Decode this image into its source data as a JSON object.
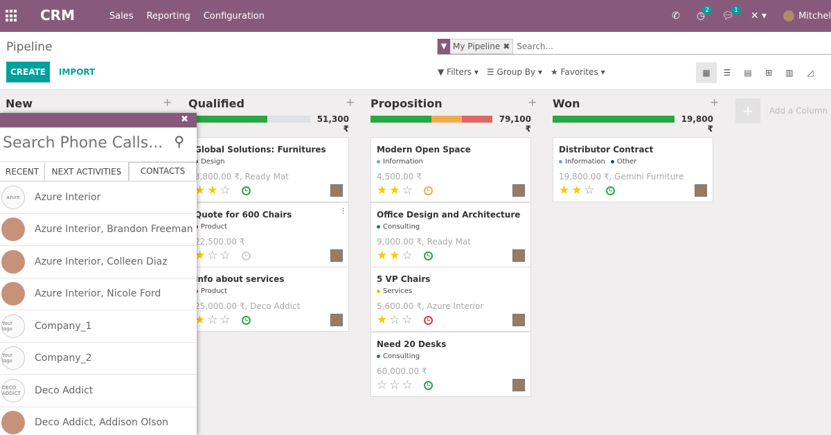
{
  "topbar": {
    "brand": "CRM",
    "menu": [
      "Sales",
      "Reporting",
      "Configuration"
    ],
    "activity_badge": "2",
    "messages_badge": "1",
    "user": "Mitchel"
  },
  "control_panel": {
    "breadcrumb": "Pipeline",
    "create_label": "CREATE",
    "import_label": "IMPORT",
    "facet_value": "My Pipeline",
    "search_placeholder": "Search...",
    "filters_label": "Filters",
    "groupby_label": "Group By",
    "favorites_label": "Favorites"
  },
  "colors": {
    "brand": "#875a7b",
    "accent": "#00a09d",
    "progress_green": "#28a745",
    "progress_orange": "#f0ad4e",
    "progress_red": "#dc6965",
    "progress_grey": "#dee2e6"
  },
  "columns": [
    {
      "title": "New",
      "total": "",
      "cards": []
    },
    {
      "title": "Qualified",
      "total": "51,300 ₹",
      "progress": {
        "green": 0.52,
        "grey": 0.28
      },
      "cards": [
        {
          "title": "Global Solutions: Furnitures",
          "tag": "Design",
          "tag_color": "#444444",
          "amount": "3,800.00 ₹, Ready Mat",
          "stars": 2,
          "activity": "green"
        },
        {
          "title": "Quote for 600 Chairs",
          "tag": "Product",
          "tag_color": "#dc3545",
          "amount": "22,500.00 ₹",
          "stars": 1,
          "activity": "grey"
        },
        {
          "title": "Info about services",
          "tag": "Product",
          "tag_color": "#dc3545",
          "amount": "25,000.00 ₹, Deco Addict",
          "stars": 1,
          "activity": "green"
        }
      ]
    },
    {
      "title": "Proposition",
      "total": "79,100 ₹",
      "progress": {
        "green": 0.4,
        "orange": 0.2,
        "red": 0.2
      },
      "cards": [
        {
          "title": "Modern Open Space",
          "tag": "Information",
          "tag_color": "#5dade2",
          "amount": "4,500.00 ₹",
          "stars": 2,
          "activity": "orange"
        },
        {
          "title": "Office Design and Architecture",
          "tag": "Consulting",
          "tag_color": "#1f6f8b",
          "amount": "9,000.00 ₹, Ready Mat",
          "stars": 2,
          "activity": "green"
        },
        {
          "title": "5 VP Chairs",
          "tag": "Services",
          "tag_color": "#f3c000",
          "amount": "5,600.00 ₹, Azure Interior",
          "stars": 1,
          "activity": "red"
        },
        {
          "title": "Need 20 Desks",
          "tag": "Consulting",
          "tag_color": "#1f6f8b",
          "amount": "60,000.00 ₹",
          "stars": 0,
          "activity": "green"
        }
      ]
    },
    {
      "title": "Won",
      "total": "19,800 ₹",
      "progress": {
        "green": 0.8
      },
      "cards": [
        {
          "title": "Distributor Contract",
          "tag": "Information",
          "tag_color": "#5dade2",
          "tag2": "Other",
          "tag2_color": "#1f4e79",
          "amount": "19,800.00 ₹, Gemini Furniture",
          "stars": 2,
          "activity": "green"
        }
      ]
    }
  ],
  "add_column_label": "Add a Column",
  "phone_panel": {
    "search_placeholder": "Search Phone Calls...",
    "tabs": [
      "RECENT",
      "NEXT ACTIVITIES",
      "CONTACTS"
    ],
    "contacts": [
      {
        "name": "Azure Interior",
        "avatar": "azure"
      },
      {
        "name": "Azure Interior, Brandon Freeman",
        "avatar": "photo"
      },
      {
        "name": "Azure Interior, Colleen Diaz",
        "avatar": "photo"
      },
      {
        "name": "Azure Interior, Nicole Ford",
        "avatar": "photo"
      },
      {
        "name": "Company_1",
        "avatar": "Your logo"
      },
      {
        "name": "Company_2",
        "avatar": "Your logo"
      },
      {
        "name": "Deco Addict",
        "avatar": "DECO ADDICT"
      },
      {
        "name": "Deco Addict, Addison Olson",
        "avatar": "photo"
      }
    ]
  }
}
